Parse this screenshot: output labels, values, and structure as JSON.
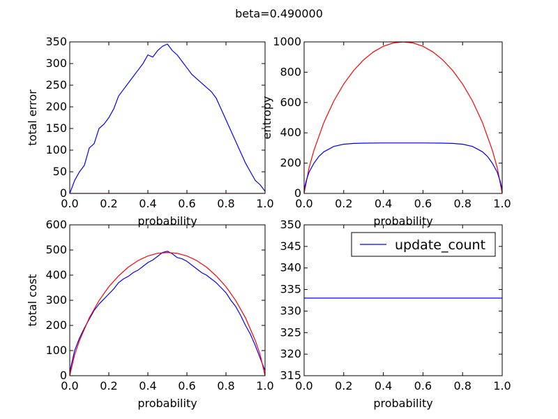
{
  "figure": {
    "suptitle": "beta=0.490000"
  },
  "chart_data": [
    {
      "type": "line",
      "panel": "top-left",
      "xlabel": "probability",
      "ylabel": "total error",
      "xlim": [
        0.0,
        1.0
      ],
      "ylim": [
        0,
        350
      ],
      "xticks": [
        "0.0",
        "0.2",
        "0.4",
        "0.6",
        "0.8",
        "1.0"
      ],
      "yticks": [
        "0",
        "50",
        "100",
        "150",
        "200",
        "250",
        "300",
        "350"
      ],
      "series": [
        {
          "color": "#0000ff",
          "x": [
            0.0,
            0.025,
            0.05,
            0.075,
            0.1,
            0.125,
            0.15,
            0.175,
            0.2,
            0.225,
            0.25,
            0.275,
            0.3,
            0.325,
            0.35,
            0.375,
            0.4,
            0.425,
            0.45,
            0.475,
            0.5,
            0.525,
            0.55,
            0.575,
            0.6,
            0.625,
            0.65,
            0.675,
            0.7,
            0.725,
            0.75,
            0.775,
            0.8,
            0.825,
            0.85,
            0.875,
            0.9,
            0.925,
            0.95,
            0.975,
            1.0
          ],
          "y": [
            0,
            30,
            50,
            65,
            105,
            115,
            150,
            160,
            175,
            195,
            225,
            240,
            255,
            270,
            285,
            300,
            320,
            315,
            330,
            340,
            345,
            330,
            320,
            305,
            290,
            275,
            265,
            255,
            245,
            235,
            220,
            195,
            170,
            145,
            120,
            95,
            70,
            50,
            30,
            20,
            5
          ]
        },
        {
          "color": "#ff0000",
          "x": [
            0.0,
            1.0
          ],
          "y": [
            0,
            0
          ]
        }
      ]
    },
    {
      "type": "line",
      "panel": "top-right",
      "xlabel": "probability",
      "ylabel": "entropy",
      "xlim": [
        0.0,
        1.0
      ],
      "ylim": [
        0,
        1000
      ],
      "xticks": [
        "0.0",
        "0.2",
        "0.4",
        "0.6",
        "0.8",
        "1.0"
      ],
      "yticks": [
        "0",
        "200",
        "400",
        "600",
        "800",
        "1000"
      ],
      "series": [
        {
          "color": "#ff0000",
          "x": [
            0.0,
            0.025,
            0.05,
            0.1,
            0.15,
            0.2,
            0.25,
            0.3,
            0.35,
            0.4,
            0.45,
            0.5,
            0.55,
            0.6,
            0.65,
            0.7,
            0.75,
            0.8,
            0.85,
            0.9,
            0.95,
            0.975,
            1.0
          ],
          "y": [
            0,
            169,
            286,
            469,
            610,
            722,
            811,
            881,
            934,
            971,
            993,
            1000,
            993,
            971,
            934,
            881,
            811,
            722,
            610,
            469,
            286,
            169,
            0
          ]
        },
        {
          "color": "#0000ff",
          "x": [
            0.0,
            0.01,
            0.025,
            0.05,
            0.075,
            0.1,
            0.15,
            0.2,
            0.25,
            0.3,
            0.4,
            0.5,
            0.6,
            0.7,
            0.75,
            0.8,
            0.85,
            0.9,
            0.925,
            0.95,
            0.975,
            0.99,
            1.0
          ],
          "y": [
            25,
            80,
            140,
            200,
            245,
            275,
            310,
            325,
            330,
            332,
            333,
            333,
            333,
            332,
            330,
            325,
            310,
            275,
            245,
            200,
            140,
            80,
            25
          ]
        }
      ]
    },
    {
      "type": "line",
      "panel": "bottom-left",
      "xlabel": "probability",
      "ylabel": "total cost",
      "xlim": [
        0.0,
        1.0
      ],
      "ylim": [
        0,
        600
      ],
      "xticks": [
        "0.0",
        "0.2",
        "0.4",
        "0.6",
        "0.8",
        "1.0"
      ],
      "yticks": [
        "0",
        "100",
        "200",
        "300",
        "400",
        "500",
        "600"
      ],
      "series": [
        {
          "color": "#0000ff",
          "x": [
            0.0,
            0.025,
            0.05,
            0.075,
            0.1,
            0.125,
            0.15,
            0.175,
            0.2,
            0.225,
            0.25,
            0.275,
            0.3,
            0.325,
            0.35,
            0.375,
            0.4,
            0.425,
            0.45,
            0.475,
            0.5,
            0.525,
            0.55,
            0.575,
            0.6,
            0.625,
            0.65,
            0.675,
            0.7,
            0.725,
            0.75,
            0.775,
            0.8,
            0.825,
            0.85,
            0.875,
            0.9,
            0.925,
            0.95,
            0.975,
            1.0
          ],
          "y": [
            15,
            100,
            150,
            190,
            225,
            260,
            285,
            305,
            325,
            345,
            370,
            385,
            395,
            410,
            420,
            435,
            450,
            460,
            475,
            490,
            495,
            485,
            470,
            465,
            455,
            440,
            425,
            410,
            400,
            385,
            370,
            350,
            330,
            300,
            275,
            240,
            200,
            165,
            120,
            70,
            20
          ]
        },
        {
          "color": "#ff0000",
          "x": [
            0.0,
            0.025,
            0.05,
            0.1,
            0.15,
            0.2,
            0.25,
            0.3,
            0.35,
            0.4,
            0.45,
            0.5,
            0.55,
            0.6,
            0.65,
            0.7,
            0.75,
            0.8,
            0.85,
            0.9,
            0.95,
            0.975,
            1.0
          ],
          "y": [
            0,
            83,
            140,
            230,
            299,
            354,
            397,
            432,
            458,
            476,
            487,
            490,
            487,
            476,
            458,
            432,
            397,
            354,
            299,
            230,
            140,
            83,
            0
          ]
        }
      ]
    },
    {
      "type": "line",
      "panel": "bottom-right",
      "xlabel": "probability",
      "ylabel": "",
      "xlim": [
        0.0,
        1.0
      ],
      "ylim": [
        315,
        350
      ],
      "xticks": [
        "0.0",
        "0.2",
        "0.4",
        "0.6",
        "0.8",
        "1.0"
      ],
      "yticks": [
        "315",
        "320",
        "325",
        "330",
        "335",
        "340",
        "345",
        "350"
      ],
      "legend": {
        "placement": "top-right",
        "entries": [
          "update_count"
        ]
      },
      "series": [
        {
          "name": "update_count",
          "color": "#0000ff",
          "x": [
            0.0,
            1.0
          ],
          "y": [
            333,
            333
          ]
        }
      ]
    }
  ]
}
